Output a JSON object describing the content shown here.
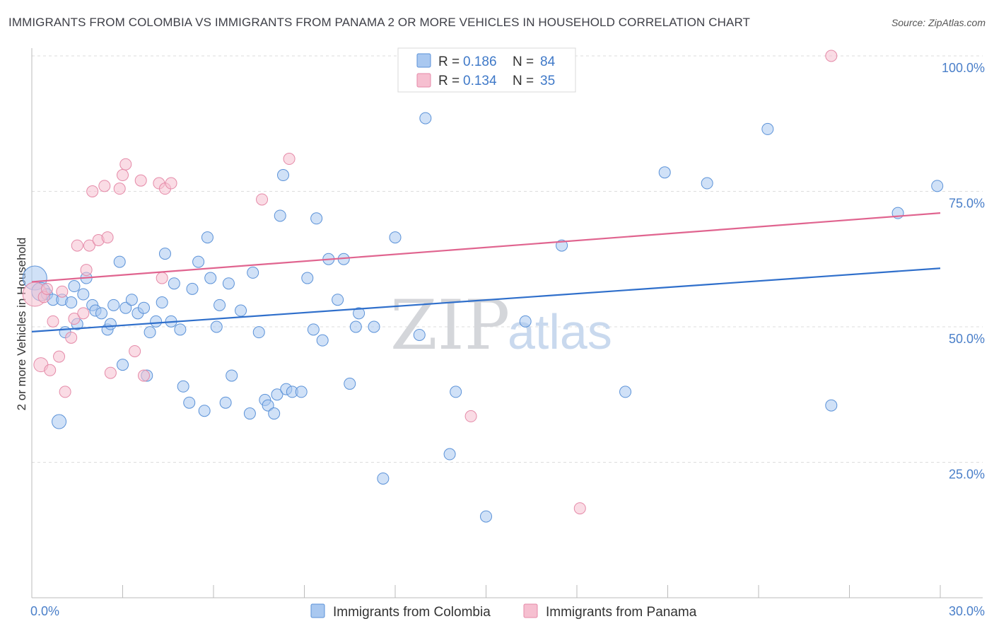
{
  "header": {
    "title": "IMMIGRANTS FROM COLOMBIA VS IMMIGRANTS FROM PANAMA 2 OR MORE VEHICLES IN HOUSEHOLD CORRELATION CHART",
    "source": "Source: ZipAtlas.com"
  },
  "watermark": {
    "zip": "ZIP",
    "atlas": "atlas"
  },
  "colors": {
    "colombia_fill": "#a9c8f0",
    "colombia_stroke": "#5b92d8",
    "colombia_line": "#2f6fcb",
    "panama_fill": "#f6bfd0",
    "panama_stroke": "#e58aa8",
    "panama_line": "#e0648f",
    "grid": "#dddddd",
    "tick_text": "#4a7fc9"
  },
  "legend": {
    "r_label": "R =",
    "n_label": "N =",
    "rows": [
      {
        "series": "colombia",
        "r": "0.186",
        "n": "84"
      },
      {
        "series": "panama",
        "r": "0.134",
        "n": "35"
      }
    ]
  },
  "bottom_legend": [
    "Immigrants from Colombia",
    "Immigrants from Panama"
  ],
  "chart_data": {
    "type": "scatter",
    "title": "IMMIGRANTS FROM COLOMBIA VS IMMIGRANTS FROM PANAMA 2 OR MORE VEHICLES IN HOUSEHOLD CORRELATION CHART",
    "xlabel": "",
    "ylabel": "2 or more Vehicles in Household",
    "xlim": [
      0,
      30
    ],
    "ylim": [
      0,
      102
    ],
    "x_tick_labels": [
      "0.0%",
      "30.0%"
    ],
    "y_ticks": [
      25,
      50,
      75,
      100
    ],
    "y_tick_labels": [
      "25.0%",
      "50.0%",
      "75.0%",
      "100.0%"
    ],
    "series": [
      {
        "name": "Immigrants from Colombia",
        "key": "colombia",
        "trend": {
          "x": [
            0,
            30
          ],
          "y": [
            49.1,
            60.8
          ]
        },
        "points": [
          {
            "x": 0.1,
            "y": 59.0,
            "s": "xl"
          },
          {
            "x": 0.3,
            "y": 56.5,
            "s": "lg"
          },
          {
            "x": 0.5,
            "y": 56.0
          },
          {
            "x": 0.7,
            "y": 55.0
          },
          {
            "x": 0.9,
            "y": 32.5,
            "s": "md"
          },
          {
            "x": 1.0,
            "y": 55.0
          },
          {
            "x": 1.1,
            "y": 49.0
          },
          {
            "x": 1.3,
            "y": 54.5
          },
          {
            "x": 1.4,
            "y": 57.5
          },
          {
            "x": 1.5,
            "y": 50.5
          },
          {
            "x": 1.7,
            "y": 56.0
          },
          {
            "x": 1.8,
            "y": 59.0
          },
          {
            "x": 2.0,
            "y": 54.0
          },
          {
            "x": 2.1,
            "y": 53.0
          },
          {
            "x": 2.3,
            "y": 52.5
          },
          {
            "x": 2.5,
            "y": 49.5
          },
          {
            "x": 2.6,
            "y": 50.5
          },
          {
            "x": 2.7,
            "y": 54.0
          },
          {
            "x": 2.9,
            "y": 62.0
          },
          {
            "x": 3.1,
            "y": 53.5
          },
          {
            "x": 3.3,
            "y": 55.0
          },
          {
            "x": 3.5,
            "y": 52.5
          },
          {
            "x": 3.7,
            "y": 53.5
          },
          {
            "x": 3.0,
            "y": 43.0
          },
          {
            "x": 3.8,
            "y": 41.0
          },
          {
            "x": 3.9,
            "y": 49.0
          },
          {
            "x": 4.1,
            "y": 51.0
          },
          {
            "x": 4.3,
            "y": 54.5
          },
          {
            "x": 4.4,
            "y": 63.5
          },
          {
            "x": 4.6,
            "y": 51.0
          },
          {
            "x": 4.7,
            "y": 58.0
          },
          {
            "x": 4.9,
            "y": 49.5
          },
          {
            "x": 5.0,
            "y": 39.0
          },
          {
            "x": 5.2,
            "y": 36.0
          },
          {
            "x": 5.3,
            "y": 57.0
          },
          {
            "x": 5.5,
            "y": 62.0
          },
          {
            "x": 5.7,
            "y": 34.5
          },
          {
            "x": 5.8,
            "y": 66.5
          },
          {
            "x": 5.9,
            "y": 59.0
          },
          {
            "x": 6.1,
            "y": 50.0
          },
          {
            "x": 6.2,
            "y": 54.0
          },
          {
            "x": 6.4,
            "y": 36.0
          },
          {
            "x": 6.5,
            "y": 58.0
          },
          {
            "x": 6.6,
            "y": 41.0
          },
          {
            "x": 6.9,
            "y": 53.0
          },
          {
            "x": 7.2,
            "y": 34.0
          },
          {
            "x": 7.3,
            "y": 60.0
          },
          {
            "x": 7.5,
            "y": 49.0
          },
          {
            "x": 7.7,
            "y": 36.5
          },
          {
            "x": 7.8,
            "y": 35.5
          },
          {
            "x": 8.0,
            "y": 34.0
          },
          {
            "x": 8.1,
            "y": 37.5
          },
          {
            "x": 8.2,
            "y": 70.5
          },
          {
            "x": 8.3,
            "y": 78.0
          },
          {
            "x": 8.4,
            "y": 38.5
          },
          {
            "x": 8.6,
            "y": 38.0
          },
          {
            "x": 8.9,
            "y": 38.0
          },
          {
            "x": 9.1,
            "y": 59.0
          },
          {
            "x": 9.3,
            "y": 49.5
          },
          {
            "x": 9.6,
            "y": 47.5
          },
          {
            "x": 9.4,
            "y": 70.0
          },
          {
            "x": 9.8,
            "y": 62.5
          },
          {
            "x": 10.1,
            "y": 55.0
          },
          {
            "x": 10.3,
            "y": 62.5
          },
          {
            "x": 10.5,
            "y": 39.5
          },
          {
            "x": 10.7,
            "y": 50.0
          },
          {
            "x": 10.8,
            "y": 52.5
          },
          {
            "x": 11.3,
            "y": 50.0
          },
          {
            "x": 11.6,
            "y": 22.0
          },
          {
            "x": 12.0,
            "y": 66.5
          },
          {
            "x": 12.8,
            "y": 48.5
          },
          {
            "x": 13.0,
            "y": 88.5
          },
          {
            "x": 13.8,
            "y": 26.5
          },
          {
            "x": 14.0,
            "y": 38.0
          },
          {
            "x": 15.0,
            "y": 15.0
          },
          {
            "x": 16.3,
            "y": 51.0
          },
          {
            "x": 17.5,
            "y": 65.0
          },
          {
            "x": 19.6,
            "y": 38.0
          },
          {
            "x": 20.9,
            "y": 78.5
          },
          {
            "x": 22.3,
            "y": 76.5
          },
          {
            "x": 24.3,
            "y": 86.5
          },
          {
            "x": 26.4,
            "y": 35.5
          },
          {
            "x": 28.6,
            "y": 71.0
          },
          {
            "x": 29.9,
            "y": 76.0
          }
        ]
      },
      {
        "name": "Immigrants from Panama",
        "key": "panama",
        "trend": {
          "x": [
            0,
            30
          ],
          "y": [
            58.3,
            71.0
          ]
        },
        "points": [
          {
            "x": 0.1,
            "y": 56.0,
            "s": "xl"
          },
          {
            "x": 0.3,
            "y": 43.0,
            "s": "md"
          },
          {
            "x": 0.4,
            "y": 55.5
          },
          {
            "x": 0.5,
            "y": 57.0
          },
          {
            "x": 0.6,
            "y": 42.0
          },
          {
            "x": 0.7,
            "y": 51.0
          },
          {
            "x": 0.9,
            "y": 44.5
          },
          {
            "x": 1.0,
            "y": 56.5
          },
          {
            "x": 1.1,
            "y": 38.0
          },
          {
            "x": 1.3,
            "y": 48.0
          },
          {
            "x": 1.4,
            "y": 51.5
          },
          {
            "x": 1.5,
            "y": 65.0
          },
          {
            "x": 1.7,
            "y": 52.5
          },
          {
            "x": 1.8,
            "y": 60.5
          },
          {
            "x": 1.9,
            "y": 65.0
          },
          {
            "x": 2.0,
            "y": 75.0
          },
          {
            "x": 2.2,
            "y": 66.0
          },
          {
            "x": 2.4,
            "y": 76.0
          },
          {
            "x": 2.5,
            "y": 66.5
          },
          {
            "x": 2.6,
            "y": 41.5
          },
          {
            "x": 2.9,
            "y": 75.5
          },
          {
            "x": 3.0,
            "y": 78.0
          },
          {
            "x": 3.1,
            "y": 80.0
          },
          {
            "x": 3.4,
            "y": 45.5
          },
          {
            "x": 3.6,
            "y": 77.0
          },
          {
            "x": 3.7,
            "y": 41.0
          },
          {
            "x": 4.2,
            "y": 76.5
          },
          {
            "x": 4.3,
            "y": 59.0
          },
          {
            "x": 4.4,
            "y": 75.5
          },
          {
            "x": 4.6,
            "y": 76.5
          },
          {
            "x": 7.6,
            "y": 73.5
          },
          {
            "x": 8.5,
            "y": 81.0
          },
          {
            "x": 14.5,
            "y": 33.5
          },
          {
            "x": 18.1,
            "y": 16.5
          },
          {
            "x": 26.4,
            "y": 100.0
          }
        ]
      }
    ]
  }
}
